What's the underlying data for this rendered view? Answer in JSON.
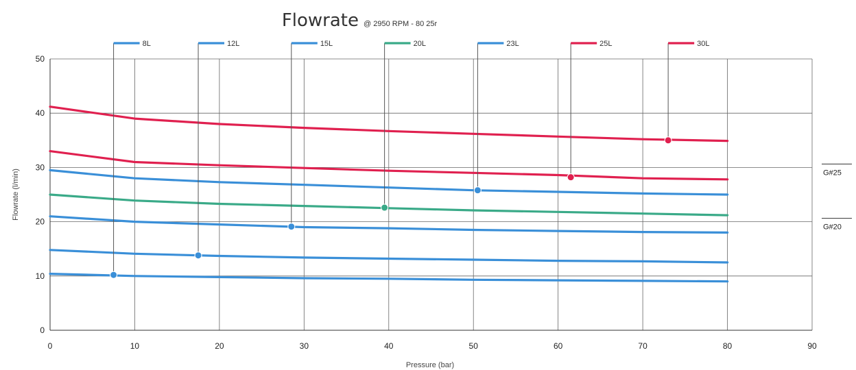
{
  "chart_data": {
    "type": "line",
    "title": "Flowrate",
    "subtitle": "@ 2950 RPM - 80 25r",
    "xlabel": "Pressure (bar)",
    "ylabel": "Flowrate (l/min)",
    "xlim": [
      0,
      90
    ],
    "ylim": [
      0,
      50
    ],
    "x_ticks": [
      0,
      10,
      20,
      30,
      40,
      50,
      60,
      70,
      80,
      90
    ],
    "y_ticks": [
      0,
      10,
      20,
      30,
      40,
      50
    ],
    "grid": true,
    "legend_position": "top",
    "x": [
      0,
      10,
      20,
      30,
      40,
      50,
      60,
      70,
      80
    ],
    "series": [
      {
        "name": "8L",
        "color": "#3a8fd8",
        "values": [
          10.4,
          10.0,
          9.8,
          9.6,
          9.5,
          9.3,
          9.2,
          9.1,
          9.0
        ],
        "marker_x": 7.5,
        "marker_y": 10.2
      },
      {
        "name": "12L",
        "color": "#3a8fd8",
        "values": [
          14.8,
          14.1,
          13.7,
          13.4,
          13.2,
          13.0,
          12.8,
          12.7,
          12.5
        ],
        "marker_x": 17.5,
        "marker_y": 13.8
      },
      {
        "name": "15L",
        "color": "#3a8fd8",
        "values": [
          21.0,
          20.0,
          19.5,
          19.0,
          18.8,
          18.5,
          18.3,
          18.1,
          18.0
        ],
        "marker_x": 28.5,
        "marker_y": 19.1
      },
      {
        "name": "20L",
        "color": "#3aaa88",
        "values": [
          25.0,
          23.9,
          23.3,
          22.9,
          22.5,
          22.1,
          21.8,
          21.5,
          21.2
        ],
        "marker_x": 39.5,
        "marker_y": 22.6
      },
      {
        "name": "23L",
        "color": "#3a8fd8",
        "values": [
          29.5,
          28.0,
          27.3,
          26.8,
          26.3,
          25.8,
          25.5,
          25.2,
          25.0
        ],
        "marker_x": 50.5,
        "marker_y": 25.8
      },
      {
        "name": "25L",
        "color": "#e0204f",
        "values": [
          33.0,
          31.0,
          30.4,
          29.9,
          29.4,
          29.0,
          28.6,
          28.0,
          27.8
        ],
        "marker_x": 61.5,
        "marker_y": 28.2
      },
      {
        "name": "30L",
        "color": "#e0204f",
        "values": [
          41.2,
          39.0,
          38.0,
          37.3,
          36.7,
          36.2,
          35.7,
          35.2,
          34.9
        ],
        "marker_x": 73.0,
        "marker_y": 35.0
      }
    ],
    "reference_lines": [
      {
        "label": "G#25",
        "y": 30
      },
      {
        "label": "G#20",
        "y": 20
      }
    ]
  }
}
